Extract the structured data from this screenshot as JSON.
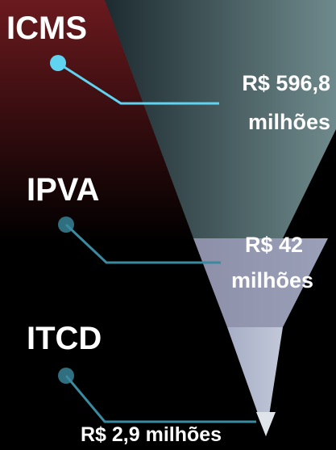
{
  "items": [
    {
      "name": "ICMS",
      "value_lines": [
        "R$ 596,8",
        "milhões"
      ]
    },
    {
      "name": "IPVA",
      "value_lines": [
        "R$ 42",
        "milhões"
      ]
    },
    {
      "name": "ITCD",
      "value_lines": [
        "R$ 2,9 milhões"
      ]
    }
  ]
}
